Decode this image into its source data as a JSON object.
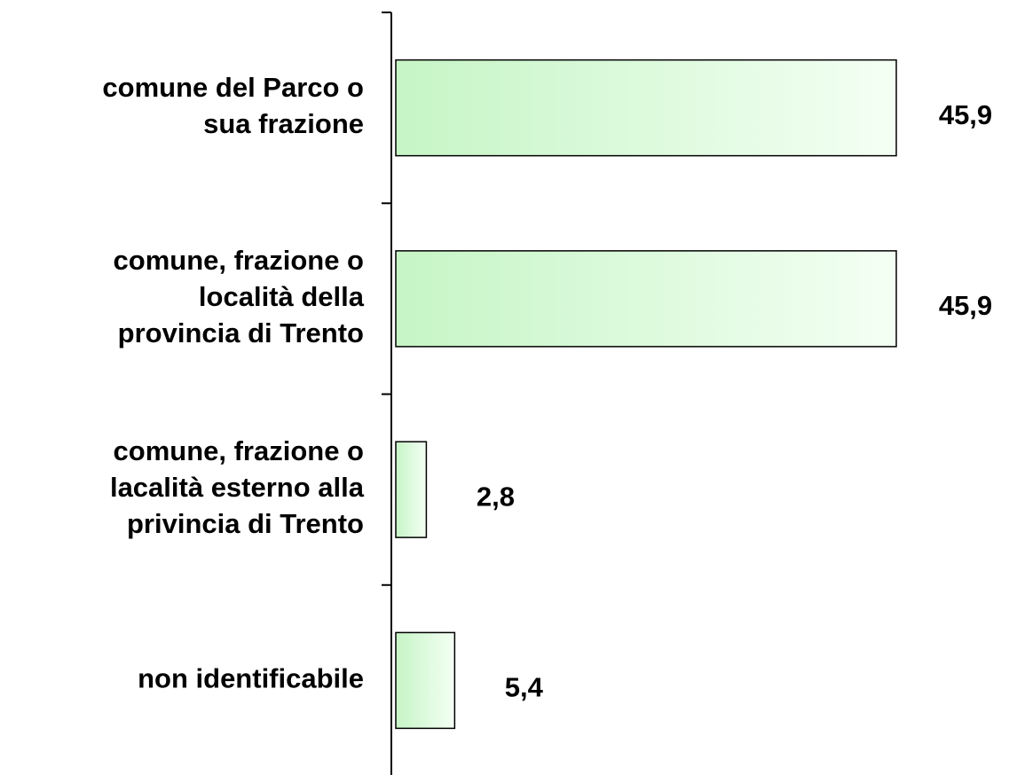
{
  "chart_data": {
    "type": "barh",
    "categories": [
      "comune del Parco o\nsua frazione",
      "comune, frazione o\nlocalità della\nprovincia di Trento",
      "comune, frazione o\nlacalità esterno alla\nprivincia di Trento",
      "non identificabile"
    ],
    "values": [
      45.9,
      45.9,
      2.8,
      5.4
    ],
    "value_labels": [
      "45,9",
      "45,9",
      "2,8",
      "5,4"
    ],
    "color": "#c6f5c6",
    "xlim": [
      0,
      55
    ]
  }
}
